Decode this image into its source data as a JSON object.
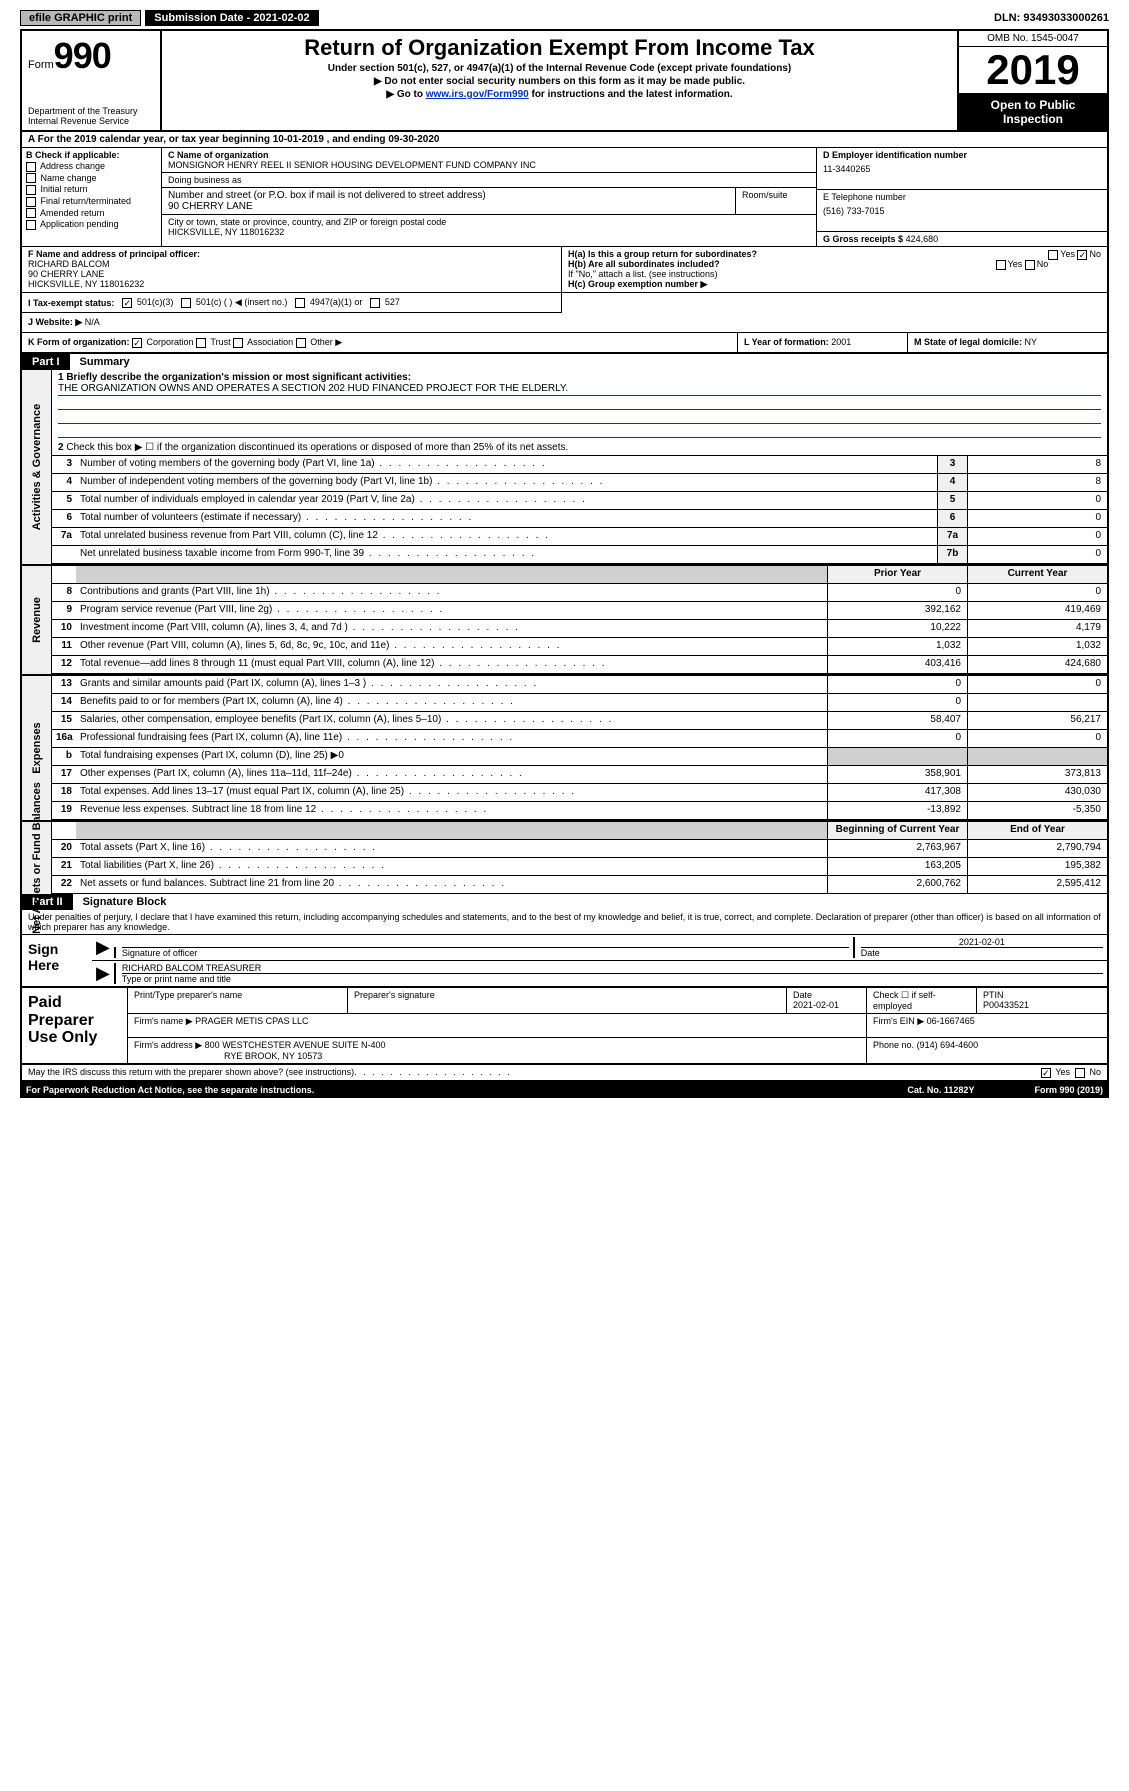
{
  "topbar": {
    "efile": "efile GRAPHIC print",
    "submission": "Submission Date - 2021-02-02",
    "dln": "DLN: 93493033000261"
  },
  "header": {
    "form_prefix": "Form",
    "form_num": "990",
    "title": "Return of Organization Exempt From Income Tax",
    "subtitle": "Under section 501(c), 527, or 4947(a)(1) of the Internal Revenue Code (except private foundations)",
    "note1": "▶ Do not enter social security numbers on this form as it may be made public.",
    "note2_pre": "▶ Go to ",
    "note2_link": "www.irs.gov/Form990",
    "note2_post": " for instructions and the latest information.",
    "dept": "Department of the Treasury\nInternal Revenue Service",
    "omb": "OMB No. 1545-0047",
    "year": "2019",
    "open": "Open to Public Inspection"
  },
  "row_a": "A For the 2019 calendar year, or tax year beginning 10-01-2019     , and ending 09-30-2020",
  "section_b": {
    "label": "B Check if applicable:",
    "opts": [
      "Address change",
      "Name change",
      "Initial return",
      "Final return/terminated",
      "Amended return",
      "Application pending"
    ]
  },
  "section_c": {
    "name_label": "C Name of organization",
    "name": "MONSIGNOR HENRY REEL II SENIOR HOUSING DEVELOPMENT FUND COMPANY INC",
    "dba_label": "Doing business as",
    "dba": "",
    "street_label": "Number and street (or P.O. box if mail is not delivered to street address)",
    "street": "90 CHERRY LANE",
    "room_label": "Room/suite",
    "city_label": "City or town, state or province, country, and ZIP or foreign postal code",
    "city": "HICKSVILLE, NY  118016232"
  },
  "section_d": {
    "label": "D Employer identification number",
    "value": "11-3440265"
  },
  "section_e": {
    "label": "E Telephone number",
    "value": "(516) 733-7015"
  },
  "section_g": {
    "label": "G Gross receipts $",
    "value": "424,680"
  },
  "section_f": {
    "label": "F  Name and address of principal officer:",
    "name": "RICHARD BALCOM",
    "street": "90 CHERRY LANE",
    "city": "HICKSVILLE, NY  118016232"
  },
  "section_h": {
    "a": "H(a)  Is this a group return for subordinates?",
    "b": "H(b)  Are all subordinates included?",
    "note": "If \"No,\" attach a list. (see instructions)",
    "c": "H(c)  Group exemption number ▶",
    "yes": "Yes",
    "no": "No"
  },
  "section_i": {
    "label": "I   Tax-exempt status:",
    "o1": "501(c)(3)",
    "o2": "501(c) (  ) ◀ (insert no.)",
    "o3": "4947(a)(1) or",
    "o4": "527"
  },
  "section_j": {
    "label": "J   Website: ▶",
    "value": "N/A"
  },
  "section_k": {
    "label": "K Form of organization:",
    "opts": [
      "Corporation",
      "Trust",
      "Association",
      "Other ▶"
    ]
  },
  "section_l": {
    "label": "L Year of formation:",
    "value": "2001"
  },
  "section_m": {
    "label": "M State of legal domicile:",
    "value": "NY"
  },
  "part1": {
    "tab": "Part I",
    "title": "Summary"
  },
  "summary": {
    "q1_label": "1   Briefly describe the organization's mission or most significant activities:",
    "q1_text": "THE ORGANIZATION OWNS AND OPERATES A SECTION 202 HUD FINANCED PROJECT FOR THE ELDERLY.",
    "q2": "Check this box ▶ ☐  if the organization discontinued its operations or disposed of more than 25% of its net assets.",
    "sides": {
      "gov": "Activities & Governance",
      "rev": "Revenue",
      "exp": "Expenses",
      "net": "Net Assets or Fund Balances"
    },
    "hdr_prior": "Prior Year",
    "hdr_current": "Current Year",
    "hdr_begin": "Beginning of Current Year",
    "hdr_end": "End of Year",
    "lines_gov": [
      {
        "n": "3",
        "d": "Number of voting members of the governing body (Part VI, line 1a)",
        "box": "3",
        "v": "8"
      },
      {
        "n": "4",
        "d": "Number of independent voting members of the governing body (Part VI, line 1b)",
        "box": "4",
        "v": "8"
      },
      {
        "n": "5",
        "d": "Total number of individuals employed in calendar year 2019 (Part V, line 2a)",
        "box": "5",
        "v": "0"
      },
      {
        "n": "6",
        "d": "Total number of volunteers (estimate if necessary)",
        "box": "6",
        "v": "0"
      },
      {
        "n": "7a",
        "d": "Total unrelated business revenue from Part VIII, column (C), line 12",
        "box": "7a",
        "v": "0"
      },
      {
        "n": "",
        "d": "Net unrelated business taxable income from Form 990-T, line 39",
        "box": "7b",
        "v": "0"
      }
    ],
    "lines_rev": [
      {
        "n": "8",
        "d": "Contributions and grants (Part VIII, line 1h)",
        "p": "0",
        "c": "0"
      },
      {
        "n": "9",
        "d": "Program service revenue (Part VIII, line 2g)",
        "p": "392,162",
        "c": "419,469"
      },
      {
        "n": "10",
        "d": "Investment income (Part VIII, column (A), lines 3, 4, and 7d )",
        "p": "10,222",
        "c": "4,179"
      },
      {
        "n": "11",
        "d": "Other revenue (Part VIII, column (A), lines 5, 6d, 8c, 9c, 10c, and 11e)",
        "p": "1,032",
        "c": "1,032"
      },
      {
        "n": "12",
        "d": "Total revenue—add lines 8 through 11 (must equal Part VIII, column (A), line 12)",
        "p": "403,416",
        "c": "424,680"
      }
    ],
    "lines_exp": [
      {
        "n": "13",
        "d": "Grants and similar amounts paid (Part IX, column (A), lines 1–3 )",
        "p": "0",
        "c": "0"
      },
      {
        "n": "14",
        "d": "Benefits paid to or for members (Part IX, column (A), line 4)",
        "p": "0",
        "c": ""
      },
      {
        "n": "15",
        "d": "Salaries, other compensation, employee benefits (Part IX, column (A), lines 5–10)",
        "p": "58,407",
        "c": "56,217"
      },
      {
        "n": "16a",
        "d": "Professional fundraising fees (Part IX, column (A), line 11e)",
        "p": "0",
        "c": "0"
      },
      {
        "n": "b",
        "d": "Total fundraising expenses (Part IX, column (D), line 25) ▶0",
        "p": "",
        "c": "",
        "gray": true
      },
      {
        "n": "17",
        "d": "Other expenses (Part IX, column (A), lines 11a–11d, 11f–24e)",
        "p": "358,901",
        "c": "373,813"
      },
      {
        "n": "18",
        "d": "Total expenses. Add lines 13–17 (must equal Part IX, column (A), line 25)",
        "p": "417,308",
        "c": "430,030"
      },
      {
        "n": "19",
        "d": "Revenue less expenses. Subtract line 18 from line 12",
        "p": "-13,892",
        "c": "-5,350"
      }
    ],
    "lines_net": [
      {
        "n": "20",
        "d": "Total assets (Part X, line 16)",
        "p": "2,763,967",
        "c": "2,790,794"
      },
      {
        "n": "21",
        "d": "Total liabilities (Part X, line 26)",
        "p": "163,205",
        "c": "195,382"
      },
      {
        "n": "22",
        "d": "Net assets or fund balances. Subtract line 21 from line 20",
        "p": "2,600,762",
        "c": "2,595,412"
      }
    ]
  },
  "part2": {
    "tab": "Part II",
    "title": "Signature Block"
  },
  "sig": {
    "perjury": "Under penalties of perjury, I declare that I have examined this return, including accompanying schedules and statements, and to the best of my knowledge and belief, it is true, correct, and complete. Declaration of preparer (other than officer) is based on all information of which preparer has any knowledge.",
    "sign_here": "Sign Here",
    "sig_officer": "Signature of officer",
    "date": "Date",
    "date_val": "2021-02-01",
    "typed": "RICHARD BALCOM  TREASURER",
    "typed_label": "Type or print name and title"
  },
  "paid": {
    "title": "Paid Preparer Use Only",
    "r1": {
      "c1": "Print/Type preparer's name",
      "c2": "Preparer's signature",
      "c3": "Date",
      "c3v": "2021-02-01",
      "c4": "Check ☐ if self-employed",
      "c5": "PTIN",
      "c5v": "P00433521"
    },
    "r2": {
      "label": "Firm's name      ▶",
      "val": "PRAGER METIS CPAS LLC",
      "ein_label": "Firm's EIN ▶",
      "ein": "06-1667465"
    },
    "r3": {
      "label": "Firm's address ▶",
      "val": "800 WESTCHESTER AVENUE SUITE N-400",
      "city": "RYE BROOK, NY  10573",
      "phone_label": "Phone no.",
      "phone": "(914) 694-4600"
    }
  },
  "footer": {
    "q": "May the IRS discuss this return with the preparer shown above? (see instructions)",
    "yes": "Yes",
    "no": "No",
    "pra": "For Paperwork Reduction Act Notice, see the separate instructions.",
    "cat": "Cat. No. 11282Y",
    "form": "Form 990 (2019)"
  }
}
